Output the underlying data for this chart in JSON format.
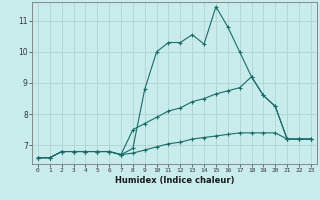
{
  "xlabel": "Humidex (Indice chaleur)",
  "bg_color": "#c8ecec",
  "grid_color": "#b0d4d4",
  "line_color": "#1a6b6b",
  "x_values": [
    0,
    1,
    2,
    3,
    4,
    5,
    6,
    7,
    8,
    9,
    10,
    11,
    12,
    13,
    14,
    15,
    16,
    17,
    18,
    19,
    20,
    21,
    22,
    23
  ],
  "line1": [
    6.6,
    6.6,
    6.8,
    6.8,
    6.8,
    6.8,
    6.8,
    6.7,
    6.9,
    8.8,
    10.0,
    10.3,
    10.3,
    10.55,
    10.25,
    11.45,
    10.8,
    10.0,
    9.2,
    8.6,
    8.25,
    7.2,
    7.2,
    7.2
  ],
  "line2": [
    6.6,
    6.6,
    6.8,
    6.8,
    6.8,
    6.8,
    6.8,
    6.7,
    7.5,
    7.7,
    7.9,
    8.1,
    8.2,
    8.4,
    8.5,
    8.65,
    8.75,
    8.85,
    9.2,
    8.6,
    8.25,
    7.2,
    7.2,
    7.2
  ],
  "line3": [
    6.6,
    6.6,
    6.8,
    6.8,
    6.8,
    6.8,
    6.8,
    6.7,
    6.75,
    6.85,
    6.95,
    7.05,
    7.1,
    7.2,
    7.25,
    7.3,
    7.35,
    7.4,
    7.4,
    7.4,
    7.4,
    7.2,
    7.2,
    7.2
  ],
  "ylim": [
    6.4,
    11.6
  ],
  "yticks": [
    7,
    8,
    9,
    10,
    11
  ],
  "xlim": [
    -0.5,
    23.5
  ]
}
